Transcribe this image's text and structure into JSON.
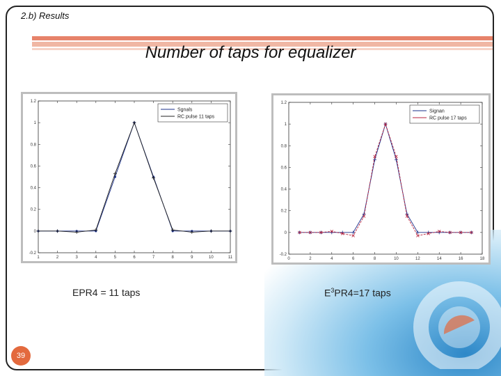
{
  "slide": {
    "section_label": "2.b) Results",
    "title": "Number of taps for equalizer",
    "page_number": "39",
    "colors": {
      "accent": "#e7836a",
      "accent_light": "#f0b7a4",
      "badge": "#e36a3e",
      "water": "#2e88c8"
    }
  },
  "figures": [
    {
      "caption": "EPR4 = 11 taps"
    },
    {
      "caption_prefix": "E",
      "caption_superscript": "3",
      "caption_suffix": "PR4=17 taps"
    }
  ],
  "chart_data": [
    {
      "type": "line",
      "xlim": [
        1,
        11
      ],
      "ylim": [
        -0.2,
        1.2
      ],
      "xticks": [
        "1",
        "2",
        "3",
        "4",
        "5",
        "6",
        "7",
        "8",
        "9",
        "10",
        "11"
      ],
      "yticks": [
        "-0.2",
        "0",
        "0.2",
        "0.4",
        "0.6",
        "0.8",
        "1",
        "1.2"
      ],
      "legend_position": "top-right",
      "series": [
        {
          "name": "Sgnals",
          "color": "#1a2f8a",
          "marker": "dot",
          "x": [
            1,
            2,
            3,
            4,
            5,
            6,
            7,
            8,
            9,
            10,
            11
          ],
          "values": [
            0,
            0,
            0,
            0,
            0.5,
            1,
            0.5,
            0,
            0,
            0,
            0
          ]
        },
        {
          "name": "RC pulse 11 taps",
          "color": "#222222",
          "marker": "plus",
          "x": [
            1,
            2,
            3,
            4,
            5,
            6,
            7,
            8,
            9,
            10,
            11
          ],
          "values": [
            0,
            0,
            -0.01,
            0.01,
            0.53,
            1,
            0.49,
            0.01,
            -0.01,
            0,
            0
          ]
        }
      ]
    },
    {
      "type": "line",
      "xlim": [
        0,
        18
      ],
      "ylim": [
        -0.2,
        1.2
      ],
      "xticks": [
        "0",
        "2",
        "4",
        "6",
        "8",
        "10",
        "12",
        "14",
        "16",
        "18"
      ],
      "yticks": [
        "-0.2",
        "0",
        "0.2",
        "0.4",
        "0.6",
        "0.8",
        "1",
        "1.2"
      ],
      "legend_position": "top-right",
      "series": [
        {
          "name": "Signan",
          "color": "#1a2f8a",
          "marker": "plus",
          "x": [
            1,
            2,
            3,
            4,
            5,
            6,
            7,
            8,
            9,
            10,
            11,
            12,
            13,
            14,
            15,
            16,
            17
          ],
          "values": [
            0,
            0,
            0,
            0,
            0,
            0,
            0.17,
            0.67,
            1,
            0.67,
            0.17,
            0,
            0,
            0,
            0,
            0,
            0
          ]
        },
        {
          "name": "RC pulse 17 taps",
          "color": "#b8223c",
          "marker": "cross",
          "x": [
            1,
            2,
            3,
            4,
            5,
            6,
            7,
            8,
            9,
            10,
            11,
            12,
            13,
            14,
            15,
            16,
            17
          ],
          "values": [
            0,
            0,
            0,
            0.01,
            -0.01,
            -0.03,
            0.15,
            0.7,
            1,
            0.7,
            0.15,
            -0.03,
            -0.01,
            0.01,
            0,
            0,
            0
          ]
        }
      ]
    }
  ]
}
